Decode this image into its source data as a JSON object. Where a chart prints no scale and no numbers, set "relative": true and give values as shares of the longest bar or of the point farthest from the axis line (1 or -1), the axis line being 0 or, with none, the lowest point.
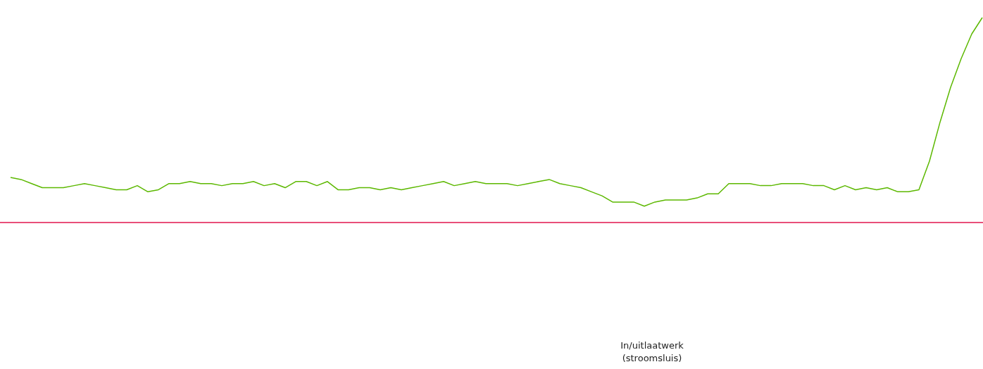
{
  "chart_data": {
    "type": "line",
    "relative": true,
    "marker": "none",
    "line_style": "solid",
    "categories": [
      null,
      null,
      null,
      null,
      null,
      null,
      null,
      null,
      null,
      null,
      null,
      null,
      null,
      null,
      null,
      null,
      null,
      null,
      null,
      null,
      null,
      null,
      null,
      null,
      null,
      null,
      null,
      null,
      null,
      null,
      null,
      null,
      null,
      null,
      null,
      null,
      null,
      null,
      null,
      null,
      null,
      null,
      null,
      null,
      null,
      null,
      null,
      null,
      null,
      null,
      null,
      null,
      null,
      null,
      null,
      null,
      null,
      null,
      null,
      null,
      null,
      null,
      null,
      null,
      null,
      null,
      null,
      null,
      null,
      null,
      null,
      null,
      null,
      null,
      null,
      null,
      null,
      null,
      null,
      null,
      null,
      null,
      null,
      null,
      null,
      null,
      null,
      null,
      null,
      null,
      null,
      null,
      null
    ],
    "series": [
      {
        "color": "#5cb800",
        "values": [
          0.22,
          0.21,
          0.19,
          0.17,
          0.17,
          0.17,
          0.18,
          0.19,
          0.18,
          0.17,
          0.16,
          0.16,
          0.18,
          0.15,
          0.16,
          0.19,
          0.19,
          0.2,
          0.19,
          0.19,
          0.18,
          0.19,
          0.19,
          0.2,
          0.18,
          0.19,
          0.17,
          0.2,
          0.2,
          0.18,
          0.2,
          0.16,
          0.16,
          0.17,
          0.17,
          0.16,
          0.17,
          0.16,
          0.17,
          0.18,
          0.19,
          0.2,
          0.18,
          0.19,
          0.2,
          0.19,
          0.19,
          0.19,
          0.18,
          0.19,
          0.2,
          0.21,
          0.19,
          0.18,
          0.17,
          0.15,
          0.13,
          0.1,
          0.1,
          0.1,
          0.08,
          0.1,
          0.11,
          0.11,
          0.11,
          0.12,
          0.14,
          0.14,
          0.19,
          0.19,
          0.19,
          0.18,
          0.18,
          0.19,
          0.19,
          0.19,
          0.18,
          0.18,
          0.16,
          0.18,
          0.16,
          0.17,
          0.16,
          0.17,
          0.15,
          0.15,
          0.16,
          0.3,
          0.49,
          0.66,
          0.8,
          0.92,
          1
        ]
      }
    ],
    "ref_lines": [
      {
        "axis": "y",
        "value": 0,
        "color": "#e0144c"
      }
    ],
    "annotations": [
      "In/uitlaatwerk\n(stroomsluis)"
    ]
  }
}
